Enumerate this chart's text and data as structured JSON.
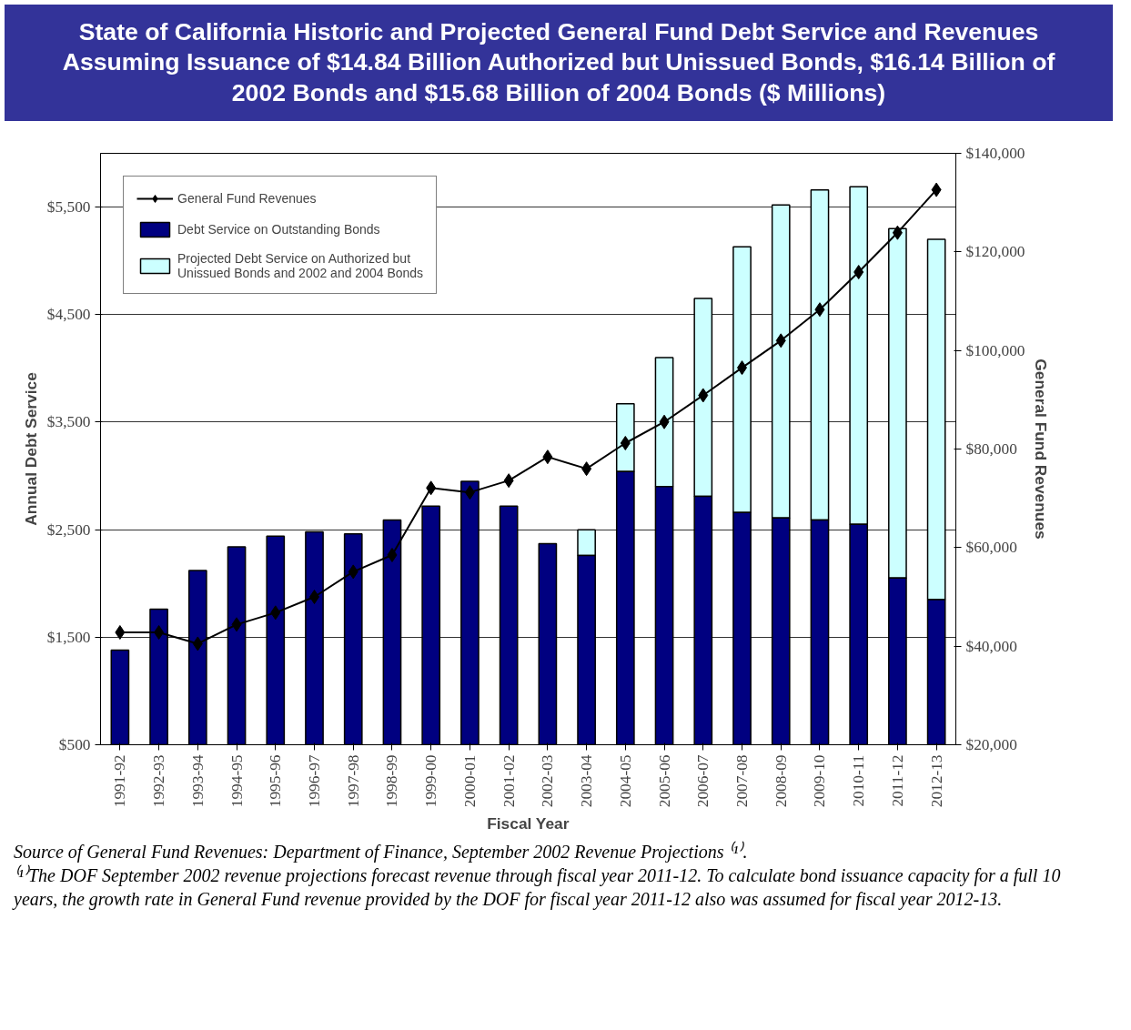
{
  "chart_data": {
    "type": "bar",
    "title": "State of California Historic and Projected General Fund Debt Service and Revenues Assuming Issuance of $14.84 Billion Authorized but Unissued Bonds, $16.14 Billion of 2002 Bonds and $15.68 Billion of 2004 Bonds ($ Millions)",
    "xlabel": "Fiscal Year",
    "ylabel": "Annual Debt Service",
    "y2label": "General Fund Revenues",
    "categories": [
      "1991-92",
      "1992-93",
      "1993-94",
      "1994-95",
      "1995-96",
      "1996-97",
      "1997-98",
      "1998-99",
      "1999-00",
      "2000-01",
      "2001-02",
      "2002-03",
      "2003-04",
      "2004-05",
      "2005-06",
      "2006-07",
      "2007-08",
      "2008-09",
      "2009-10",
      "2010-11",
      "2011-12",
      "2012-13"
    ],
    "stacked": false,
    "series": [
      {
        "name": "Debt Service on Outstanding Bonds",
        "color": "#000080",
        "values": [
          1380,
          1760,
          2120,
          2340,
          2440,
          2480,
          2460,
          2590,
          2720,
          2950,
          2720,
          2370,
          2260,
          3040,
          2900,
          2810,
          2660,
          2610,
          2590,
          2550,
          2050,
          1850
        ]
      },
      {
        "name": "Projected Debt Service on Authorized but Unissued Bonds and 2002 and 2004 Bonds",
        "color": "#ccffff",
        "base": [
          null,
          null,
          null,
          null,
          null,
          null,
          null,
          null,
          null,
          null,
          null,
          null,
          2260,
          3040,
          2900,
          2810,
          2660,
          2610,
          2590,
          2550,
          2050,
          1850
        ],
        "values": [
          null,
          null,
          null,
          null,
          null,
          null,
          null,
          null,
          null,
          null,
          null,
          null,
          240,
          630,
          1200,
          1840,
          2470,
          2910,
          3070,
          3140,
          3250,
          3350
        ]
      },
      {
        "name": "General Fund Revenues",
        "type": "line",
        "axis": "y2",
        "color": "#000000",
        "values": [
          42800,
          42800,
          40500,
          44400,
          46800,
          50000,
          55100,
          58500,
          72100,
          71200,
          73600,
          78400,
          76000,
          81200,
          85500,
          90900,
          96500,
          102000,
          108300,
          115900,
          123900,
          132600
        ]
      }
    ],
    "marker": "diamond",
    "line_style": "solid",
    "ylim": [
      500,
      6000
    ],
    "yticks": [
      {
        "value": 500,
        "label": "$500"
      },
      {
        "value": 1500,
        "label": "$1,500"
      },
      {
        "value": 2500,
        "label": "$2,500"
      },
      {
        "value": 3500,
        "label": "$3,500"
      },
      {
        "value": 4500,
        "label": "$4,500"
      },
      {
        "value": 5500,
        "label": "$5,500"
      }
    ],
    "y2lim": [
      20000,
      140000
    ],
    "y2ticks": [
      {
        "value": 20000,
        "label": "$20,000"
      },
      {
        "value": 40000,
        "label": "$40,000"
      },
      {
        "value": 60000,
        "label": "$60,000"
      },
      {
        "value": 80000,
        "label": "$80,000"
      },
      {
        "value": 100000,
        "label": "$100,000"
      },
      {
        "value": 120000,
        "label": "$120,000"
      },
      {
        "value": 140000,
        "label": "$140,000"
      }
    ],
    "grid": "y",
    "legend": "top left",
    "annotations": [
      "Source of General Fund Revenues: Department of Finance, September 2002 Revenue Projections ⁽¹⁾.",
      "⁽¹⁾The DOF September 2002 revenue projections forecast revenue through fiscal year 2011-12.  To calculate bond issuance capacity for a full 10 years, the growth rate in General Fund revenue provided by the DOF for fiscal year 2011-12 also was assumed for fiscal year 2012-13."
    ]
  }
}
